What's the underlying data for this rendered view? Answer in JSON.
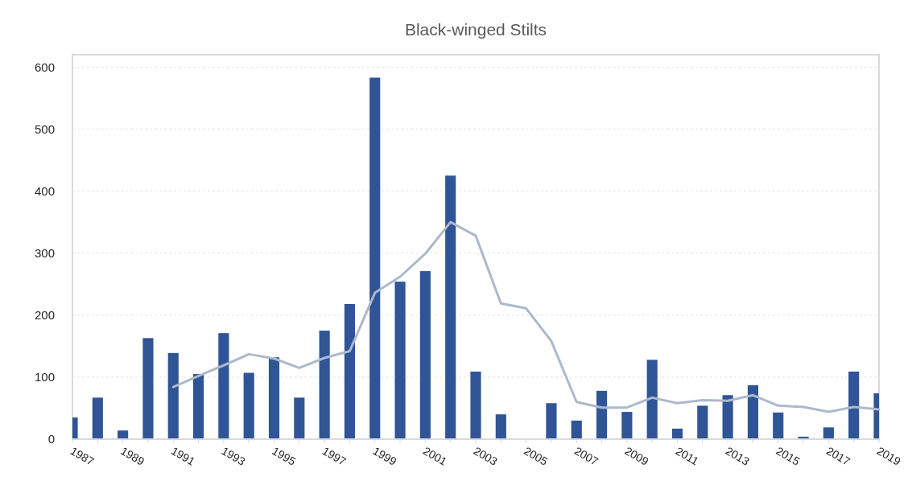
{
  "chart_data": {
    "type": "bar",
    "title": "Black-winged Stilts",
    "x": [
      1987,
      1988,
      1989,
      1990,
      1991,
      1992,
      1993,
      1994,
      1995,
      1996,
      1997,
      1998,
      1999,
      2000,
      2001,
      2002,
      2003,
      2004,
      2005,
      2006,
      2007,
      2008,
      2009,
      2010,
      2011,
      2012,
      2013,
      2014,
      2015,
      2016,
      2017,
      2018,
      2019
    ],
    "xlim": [
      1987,
      2019
    ],
    "xticks": [
      1987,
      {
        "value": 1988,
        "label": null
      },
      1989,
      {
        "value": 1990,
        "label": null
      },
      1991,
      {
        "value": 1992,
        "label": null
      },
      1993,
      {
        "value": 1994,
        "label": null
      },
      1995,
      {
        "value": 1996,
        "label": null
      },
      1997,
      {
        "value": 1998,
        "label": null
      },
      1999,
      {
        "value": 2000,
        "label": null
      },
      2001,
      {
        "value": 2002,
        "label": null
      },
      2003,
      {
        "value": 2004,
        "label": null
      },
      2005,
      {
        "value": 2006,
        "label": null
      },
      2007,
      {
        "value": 2008,
        "label": null
      },
      2009,
      {
        "value": 2010,
        "label": null
      },
      2011,
      {
        "value": 2012,
        "label": null
      },
      2013,
      {
        "value": 2014,
        "label": null
      },
      2015,
      {
        "value": 2016,
        "label": null
      },
      2017,
      {
        "value": 2018,
        "label": null
      },
      2019
    ],
    "ylim": [
      0,
      620
    ],
    "yticks": [
      0,
      100,
      200,
      300,
      400,
      500,
      600
    ],
    "grid": "y",
    "series": [
      {
        "color": "#2f5597",
        "values": [
          35,
          67,
          14,
          163,
          139,
          105,
          171,
          107,
          132,
          67,
          175,
          218,
          583,
          254,
          271,
          425,
          109,
          40,
          0,
          58,
          30,
          78,
          44,
          128,
          17,
          54,
          71,
          87,
          43,
          4,
          19,
          109,
          74
        ]
      },
      {
        "type": "line",
        "color": "#adb9ca",
        "x": [
          1991,
          1992,
          1993,
          1994,
          1995,
          1996,
          1997,
          1998,
          1999,
          2000,
          2001,
          2002,
          2003,
          2004,
          2005,
          2006,
          2007,
          2008,
          2009,
          2010,
          2011,
          2012,
          2013,
          2014,
          2015,
          2016,
          2017,
          2018,
          2019
        ],
        "values": [
          84,
          102,
          119,
          137,
          130,
          115,
          131,
          142,
          236,
          262,
          299,
          350,
          328,
          219,
          211,
          158,
          60,
          51,
          51,
          67,
          58,
          63,
          62,
          71,
          54,
          52,
          44,
          52,
          48
        ]
      }
    ]
  }
}
